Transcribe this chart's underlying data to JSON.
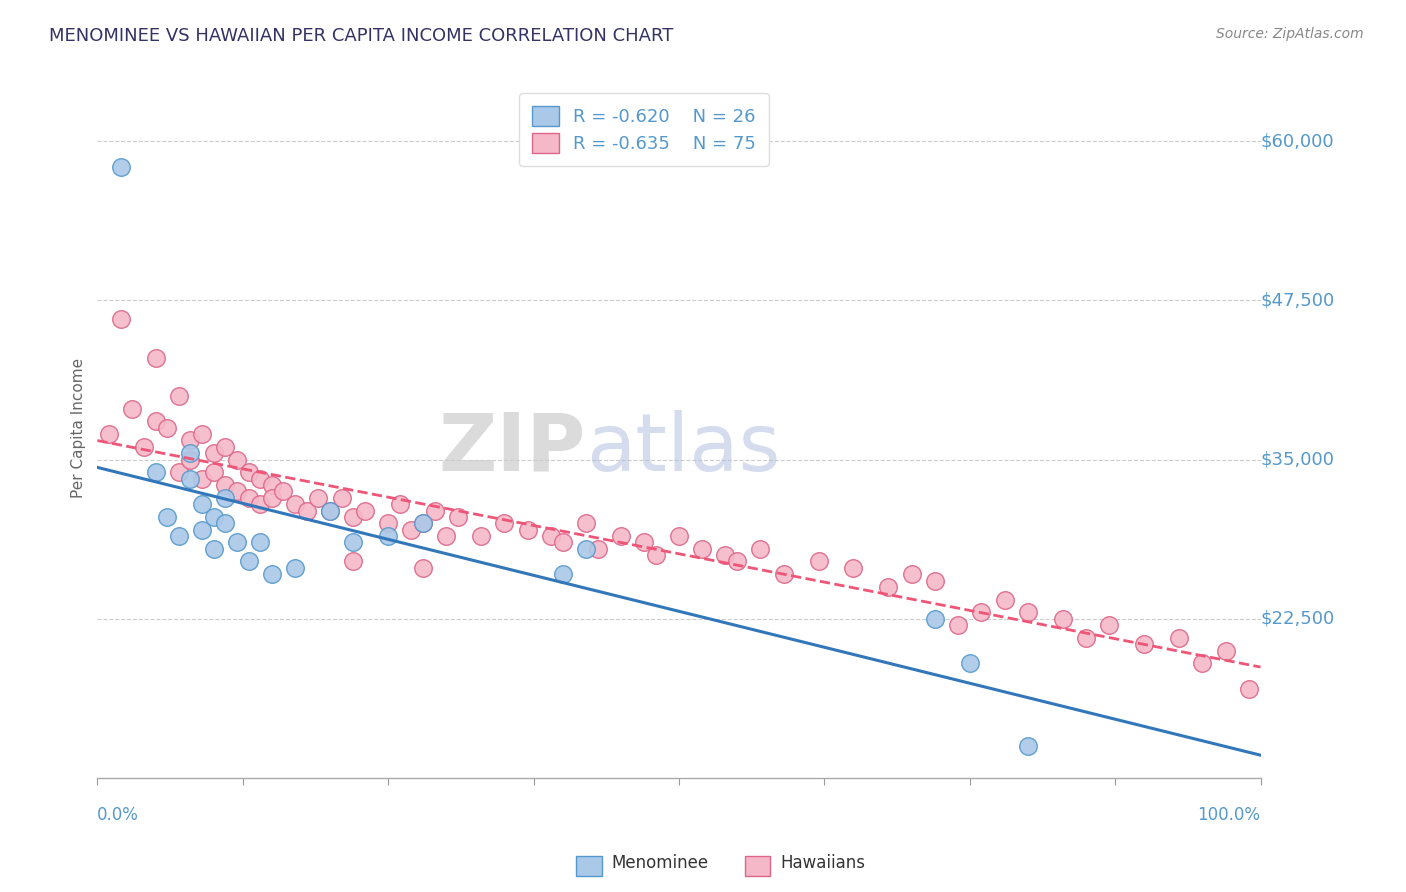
{
  "title": "MENOMINEE VS HAWAIIAN PER CAPITA INCOME CORRELATION CHART",
  "source_text": "Source: ZipAtlas.com",
  "ylabel": "Per Capita Income",
  "ylim": [
    10000,
    65000
  ],
  "xlim": [
    0.0,
    1.0
  ],
  "background_color": "#ffffff",
  "grid_color": "#cccccc",
  "menominee_color": "#aac8e8",
  "hawaiian_color": "#f5b8c8",
  "menominee_edge_color": "#5599cc",
  "hawaiian_edge_color": "#dd6688",
  "menominee_line_color": "#3377bb",
  "hawaiian_line_color": "#ee5577",
  "menominee_R": -0.62,
  "menominee_N": 26,
  "hawaiian_R": -0.635,
  "hawaiian_N": 75,
  "ytick_positions": [
    22500,
    35000,
    47500,
    60000
  ],
  "ytick_labels": [
    "$22,500",
    "$35,000",
    "$47,500",
    "$60,000"
  ],
  "tick_color": "#5599cc",
  "menominee_x": [
    0.02,
    0.05,
    0.06,
    0.07,
    0.08,
    0.08,
    0.09,
    0.09,
    0.1,
    0.1,
    0.11,
    0.11,
    0.12,
    0.13,
    0.14,
    0.15,
    0.17,
    0.2,
    0.22,
    0.25,
    0.28,
    0.4,
    0.42,
    0.72,
    0.75,
    0.8
  ],
  "menominee_y": [
    58000,
    34000,
    30500,
    29000,
    33500,
    35500,
    31500,
    29500,
    30500,
    28000,
    32000,
    30000,
    28500,
    27000,
    28500,
    26000,
    26500,
    31000,
    28500,
    29000,
    30000,
    26000,
    28000,
    22500,
    19000,
    12500
  ],
  "hawaiian_x": [
    0.01,
    0.02,
    0.03,
    0.04,
    0.05,
    0.05,
    0.06,
    0.07,
    0.07,
    0.08,
    0.08,
    0.09,
    0.09,
    0.1,
    0.1,
    0.11,
    0.11,
    0.12,
    0.12,
    0.13,
    0.13,
    0.14,
    0.14,
    0.15,
    0.15,
    0.16,
    0.17,
    0.18,
    0.19,
    0.2,
    0.21,
    0.22,
    0.22,
    0.23,
    0.25,
    0.26,
    0.27,
    0.28,
    0.28,
    0.29,
    0.3,
    0.31,
    0.33,
    0.35,
    0.37,
    0.39,
    0.4,
    0.42,
    0.43,
    0.45,
    0.47,
    0.48,
    0.5,
    0.52,
    0.54,
    0.55,
    0.57,
    0.59,
    0.62,
    0.65,
    0.68,
    0.7,
    0.72,
    0.74,
    0.76,
    0.78,
    0.8,
    0.83,
    0.85,
    0.87,
    0.9,
    0.93,
    0.95,
    0.97,
    0.99
  ],
  "hawaiian_y": [
    37000,
    46000,
    39000,
    36000,
    43000,
    38000,
    37500,
    40000,
    34000,
    36500,
    35000,
    37000,
    33500,
    35500,
    34000,
    36000,
    33000,
    35000,
    32500,
    34000,
    32000,
    33500,
    31500,
    33000,
    32000,
    32500,
    31500,
    31000,
    32000,
    31000,
    32000,
    30500,
    27000,
    31000,
    30000,
    31500,
    29500,
    30000,
    26500,
    31000,
    29000,
    30500,
    29000,
    30000,
    29500,
    29000,
    28500,
    30000,
    28000,
    29000,
    28500,
    27500,
    29000,
    28000,
    27500,
    27000,
    28000,
    26000,
    27000,
    26500,
    25000,
    26000,
    25500,
    22000,
    23000,
    24000,
    23000,
    22500,
    21000,
    22000,
    20500,
    21000,
    19000,
    20000,
    17000
  ]
}
